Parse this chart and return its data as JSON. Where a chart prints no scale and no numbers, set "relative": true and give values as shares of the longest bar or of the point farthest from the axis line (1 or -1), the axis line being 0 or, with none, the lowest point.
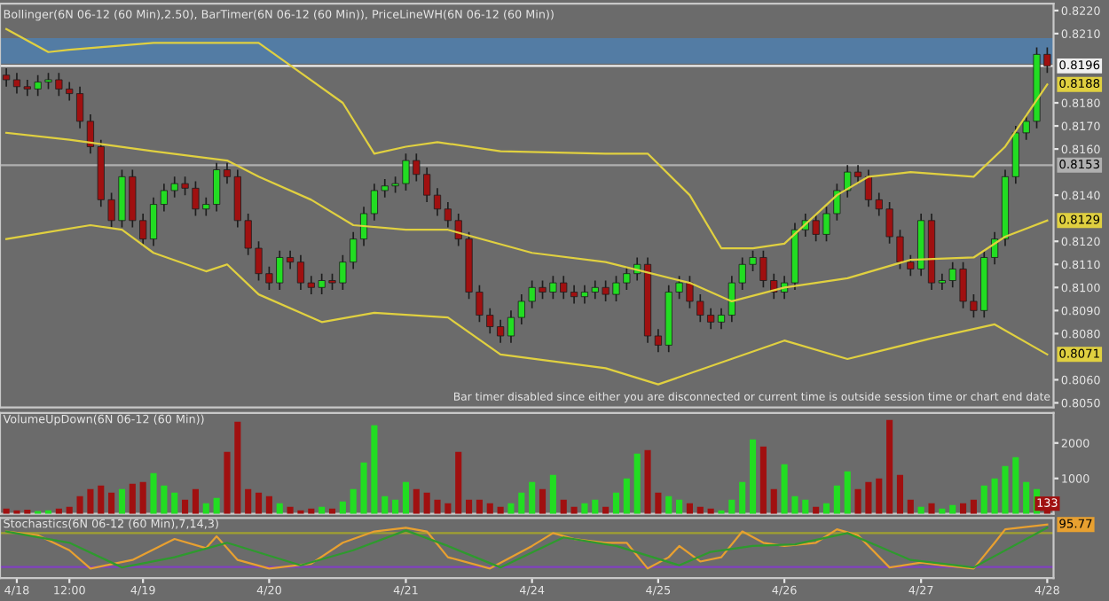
{
  "chart_data": [
    {
      "type": "candlestick",
      "title": "Bollinger(6N 06-12 (60 Min),2.50), BarTimer(6N 06-12 (60 Min)), PriceLineWH(6N 06-12 (60 Min))",
      "annotations": [
        "Bar timer disabled since either you are disconnected or current time is outside session time or chart end date"
      ],
      "tick_labels": "y",
      "categories": [
        null,
        null,
        null,
        null,
        null,
        null,
        null,
        null,
        null,
        null,
        null,
        null,
        null,
        null,
        null,
        null,
        null,
        null,
        null,
        null,
        null,
        null,
        null,
        null,
        null,
        null,
        null,
        null,
        null,
        null,
        null,
        null,
        null,
        null,
        null,
        null,
        null,
        null,
        null,
        null,
        null,
        null,
        null,
        null,
        null,
        null,
        null,
        null,
        null,
        null,
        null,
        null,
        null,
        null,
        null,
        null,
        null,
        null,
        null,
        null,
        null,
        null,
        null,
        null,
        null,
        null,
        null,
        null,
        null,
        null,
        null,
        null,
        null,
        null,
        null,
        null,
        null,
        null,
        null,
        null,
        null,
        null,
        null,
        null,
        null,
        null,
        null,
        null,
        null,
        null,
        null,
        null,
        null,
        null,
        null,
        null,
        null,
        null,
        null,
        null
      ],
      "ohlc": [
        [
          0.8192,
          0.8195,
          0.8187,
          0.819
        ],
        [
          0.819,
          0.8193,
          0.8184,
          0.8187
        ],
        [
          0.8187,
          0.819,
          0.8183,
          0.8186
        ],
        [
          0.8186,
          0.8192,
          0.8183,
          0.8189
        ],
        [
          0.8189,
          0.8193,
          0.8186,
          0.819
        ],
        [
          0.819,
          0.8193,
          0.8183,
          0.8186
        ],
        [
          0.8186,
          0.8189,
          0.8181,
          0.8184
        ],
        [
          0.8184,
          0.8187,
          0.8169,
          0.8172
        ],
        [
          0.8172,
          0.8175,
          0.8158,
          0.8161
        ],
        [
          0.8161,
          0.8164,
          0.8135,
          0.8138
        ],
        [
          0.8138,
          0.8141,
          0.8126,
          0.8129
        ],
        [
          0.8129,
          0.8151,
          0.8126,
          0.8148
        ],
        [
          0.8148,
          0.8151,
          0.8126,
          0.8129
        ],
        [
          0.8129,
          0.8132,
          0.8118,
          0.8121
        ],
        [
          0.8121,
          0.8139,
          0.8118,
          0.8136
        ],
        [
          0.8136,
          0.8145,
          0.8133,
          0.8142
        ],
        [
          0.8142,
          0.8148,
          0.8139,
          0.8145
        ],
        [
          0.8145,
          0.8148,
          0.814,
          0.8143
        ],
        [
          0.8143,
          0.8146,
          0.8131,
          0.8134
        ],
        [
          0.8134,
          0.8139,
          0.8131,
          0.8136
        ],
        [
          0.8136,
          0.8154,
          0.8133,
          0.8151
        ],
        [
          0.8151,
          0.8154,
          0.8145,
          0.8148
        ],
        [
          0.8148,
          0.8151,
          0.8126,
          0.8129
        ],
        [
          0.8129,
          0.8132,
          0.8114,
          0.8117
        ],
        [
          0.8117,
          0.812,
          0.8103,
          0.8106
        ],
        [
          0.8106,
          0.8109,
          0.8099,
          0.8102
        ],
        [
          0.8102,
          0.8116,
          0.8099,
          0.8113
        ],
        [
          0.8113,
          0.8116,
          0.8108,
          0.8111
        ],
        [
          0.8111,
          0.8114,
          0.8099,
          0.8102
        ],
        [
          0.8102,
          0.8105,
          0.8097,
          0.81
        ],
        [
          0.81,
          0.8106,
          0.8097,
          0.8103
        ],
        [
          0.8103,
          0.8106,
          0.8099,
          0.8102
        ],
        [
          0.8102,
          0.8114,
          0.8099,
          0.8111
        ],
        [
          0.8111,
          0.8124,
          0.8108,
          0.8121
        ],
        [
          0.8121,
          0.8135,
          0.8118,
          0.8132
        ],
        [
          0.8132,
          0.8145,
          0.8129,
          0.8142
        ],
        [
          0.8142,
          0.8147,
          0.8139,
          0.8144
        ],
        [
          0.8144,
          0.8148,
          0.8141,
          0.8145
        ],
        [
          0.8145,
          0.8158,
          0.8142,
          0.8155
        ],
        [
          0.8155,
          0.8158,
          0.8146,
          0.8149
        ],
        [
          0.8149,
          0.8152,
          0.8137,
          0.814
        ],
        [
          0.814,
          0.8143,
          0.8131,
          0.8134
        ],
        [
          0.8134,
          0.8137,
          0.8126,
          0.8129
        ],
        [
          0.8129,
          0.8132,
          0.8118,
          0.8121
        ],
        [
          0.8121,
          0.8124,
          0.8095,
          0.8098
        ],
        [
          0.8098,
          0.8101,
          0.8085,
          0.8088
        ],
        [
          0.8088,
          0.8091,
          0.808,
          0.8083
        ],
        [
          0.8083,
          0.8086,
          0.8076,
          0.8079
        ],
        [
          0.8079,
          0.809,
          0.8076,
          0.8087
        ],
        [
          0.8087,
          0.8097,
          0.8084,
          0.8094
        ],
        [
          0.8094,
          0.8103,
          0.8091,
          0.81
        ],
        [
          0.81,
          0.8103,
          0.8095,
          0.8098
        ],
        [
          0.8098,
          0.8105,
          0.8095,
          0.8102
        ],
        [
          0.8102,
          0.8105,
          0.8095,
          0.8098
        ],
        [
          0.8098,
          0.8101,
          0.8093,
          0.8096
        ],
        [
          0.8096,
          0.8101,
          0.8093,
          0.8098
        ],
        [
          0.8098,
          0.8103,
          0.8095,
          0.81
        ],
        [
          0.81,
          0.8103,
          0.8094,
          0.8097
        ],
        [
          0.8097,
          0.8105,
          0.8094,
          0.8102
        ],
        [
          0.8102,
          0.8109,
          0.8099,
          0.8106
        ],
        [
          0.8106,
          0.8113,
          0.8103,
          0.811
        ],
        [
          0.811,
          0.8113,
          0.8076,
          0.8079
        ],
        [
          0.8079,
          0.8082,
          0.8072,
          0.8075
        ],
        [
          0.8075,
          0.8101,
          0.8072,
          0.8098
        ],
        [
          0.8098,
          0.8105,
          0.8095,
          0.8102
        ],
        [
          0.8102,
          0.8105,
          0.8091,
          0.8094
        ],
        [
          0.8094,
          0.8097,
          0.8085,
          0.8088
        ],
        [
          0.8088,
          0.8091,
          0.8082,
          0.8085
        ],
        [
          0.8085,
          0.8091,
          0.8082,
          0.8088
        ],
        [
          0.8088,
          0.8105,
          0.8085,
          0.8102
        ],
        [
          0.8102,
          0.8113,
          0.8099,
          0.811
        ],
        [
          0.811,
          0.8116,
          0.8107,
          0.8113
        ],
        [
          0.8113,
          0.8116,
          0.81,
          0.8103
        ],
        [
          0.8103,
          0.8106,
          0.8095,
          0.8098
        ],
        [
          0.8098,
          0.8105,
          0.8095,
          0.8102
        ],
        [
          0.8102,
          0.8128,
          0.8099,
          0.8125
        ],
        [
          0.8125,
          0.8132,
          0.8122,
          0.8129
        ],
        [
          0.8129,
          0.8132,
          0.812,
          0.8123
        ],
        [
          0.8123,
          0.8135,
          0.812,
          0.8132
        ],
        [
          0.8132,
          0.8145,
          0.8129,
          0.8142
        ],
        [
          0.8142,
          0.8153,
          0.8139,
          0.815
        ],
        [
          0.815,
          0.8153,
          0.8145,
          0.8148
        ],
        [
          0.8148,
          0.8151,
          0.8135,
          0.8138
        ],
        [
          0.8138,
          0.8141,
          0.8131,
          0.8134
        ],
        [
          0.8134,
          0.8137,
          0.8119,
          0.8122
        ],
        [
          0.8122,
          0.8125,
          0.8108,
          0.8111
        ],
        [
          0.8111,
          0.8114,
          0.8105,
          0.8108
        ],
        [
          0.8108,
          0.8132,
          0.8105,
          0.8129
        ],
        [
          0.8129,
          0.8132,
          0.8099,
          0.8102
        ],
        [
          0.8102,
          0.8106,
          0.8099,
          0.8103
        ],
        [
          0.8103,
          0.8111,
          0.81,
          0.8108
        ],
        [
          0.8108,
          0.8111,
          0.8091,
          0.8094
        ],
        [
          0.8094,
          0.8097,
          0.8087,
          0.809
        ],
        [
          0.809,
          0.8116,
          0.8087,
          0.8113
        ],
        [
          0.8113,
          0.8124,
          0.811,
          0.8121
        ],
        [
          0.8121,
          0.8151,
          0.8118,
          0.8148
        ],
        [
          0.8148,
          0.817,
          0.8145,
          0.8167
        ],
        [
          0.8167,
          0.8175,
          0.8164,
          0.8172
        ],
        [
          0.8172,
          0.8204,
          0.8169,
          0.8201
        ],
        [
          0.8201,
          0.8204,
          0.8193,
          0.8196
        ]
      ],
      "colors": [
        "#a01010",
        "#a01010",
        "#a01010",
        "#22dd22",
        "#22dd22",
        "#a01010",
        "#a01010",
        "#a01010",
        "#a01010",
        "#a01010",
        "#a01010",
        "#22dd22",
        "#a01010",
        "#a01010",
        "#22dd22",
        "#22dd22",
        "#22dd22",
        "#a01010",
        "#a01010",
        "#22dd22",
        "#22dd22",
        "#a01010",
        "#a01010",
        "#a01010",
        "#a01010",
        "#a01010",
        "#22dd22",
        "#a01010",
        "#a01010",
        "#a01010",
        "#22dd22",
        "#a01010",
        "#22dd22",
        "#22dd22",
        "#22dd22",
        "#22dd22",
        "#22dd22",
        "#22dd22",
        "#22dd22",
        "#a01010",
        "#a01010",
        "#a01010",
        "#a01010",
        "#a01010",
        "#a01010",
        "#a01010",
        "#a01010",
        "#a01010",
        "#22dd22",
        "#22dd22",
        "#22dd22",
        "#a01010",
        "#22dd22",
        "#a01010",
        "#a01010",
        "#22dd22",
        "#22dd22",
        "#a01010",
        "#22dd22",
        "#22dd22",
        "#22dd22",
        "#a01010",
        "#a01010",
        "#22dd22",
        "#22dd22",
        "#a01010",
        "#a01010",
        "#a01010",
        "#22dd22",
        "#22dd22",
        "#22dd22",
        "#22dd22",
        "#a01010",
        "#a01010",
        "#22dd22",
        "#22dd22",
        "#22dd22",
        "#a01010",
        "#22dd22",
        "#22dd22",
        "#22dd22",
        "#a01010",
        "#a01010",
        "#a01010",
        "#a01010",
        "#a01010",
        "#a01010",
        "#22dd22",
        "#a01010",
        "#22dd22",
        "#22dd22",
        "#a01010",
        "#a01010",
        "#22dd22",
        "#22dd22",
        "#22dd22",
        "#22dd22",
        "#22dd22",
        "#22dd22",
        "#a01010"
      ],
      "series": [
        {
          "type": "line",
          "color": "#e0d040",
          "values": [
            0.8212,
            null,
            null,
            null,
            0.8202,
            null,
            0.8203,
            null,
            null,
            null,
            null,
            null,
            null,
            null,
            0.8206,
            null,
            null,
            null,
            null,
            null,
            null,
            null,
            null,
            null,
            0.8206,
            null,
            null,
            null,
            0.8193,
            null,
            null,
            null,
            0.818,
            null,
            null,
            0.8158,
            null,
            null,
            0.8161,
            null,
            null,
            0.8163,
            null,
            null,
            null,
            null,
            null,
            0.8159,
            null,
            null,
            null,
            null,
            null,
            null,
            null,
            null,
            null,
            0.8158,
            null,
            null,
            null,
            0.8158,
            null,
            null,
            null,
            0.814,
            null,
            null,
            0.8117,
            null,
            null,
            0.8117,
            null,
            null,
            0.8119,
            null,
            null,
            null,
            null,
            0.814,
            null,
            null,
            0.8148,
            null,
            null,
            null,
            0.815,
            null,
            null,
            null,
            null,
            null,
            0.8148,
            null,
            null,
            0.8161,
            null,
            null,
            null,
            0.8188
          ],
          "value_labels": [
            null,
            null,
            null,
            null,
            null,
            null,
            null,
            null,
            null,
            null,
            null,
            null,
            null,
            null,
            null,
            null,
            null,
            null,
            null,
            null,
            null,
            null,
            null,
            null,
            null,
            null,
            null,
            null,
            null,
            null,
            null,
            null,
            null,
            null,
            null,
            null,
            null,
            null,
            null,
            null,
            null,
            null,
            null,
            null,
            null,
            null,
            null,
            null,
            null,
            null,
            null,
            null,
            null,
            null,
            null,
            null,
            null,
            null,
            null,
            null,
            null,
            null,
            null,
            null,
            null,
            null,
            null,
            null,
            null,
            null,
            null,
            null,
            null,
            null,
            null,
            null,
            null,
            null,
            null,
            null,
            null,
            null,
            null,
            null,
            null,
            null,
            null,
            null,
            null,
            null,
            null,
            null,
            null,
            null,
            null,
            null,
            null,
            null,
            null,
            "0.8188"
          ]
        },
        {
          "type": "line",
          "color": "#e0d040",
          "values": [
            0.8167,
            null,
            null,
            null,
            null,
            null,
            0.8164,
            null,
            null,
            null,
            null,
            null,
            null,
            null,
            0.8159,
            null,
            null,
            null,
            null,
            null,
            null,
            0.8155,
            null,
            null,
            0.8148,
            null,
            null,
            null,
            null,
            0.8138,
            null,
            null,
            null,
            0.8127,
            null,
            null,
            null,
            null,
            0.8125,
            null,
            null,
            null,
            0.8125,
            null,
            null,
            null,
            null,
            null,
            null,
            null,
            0.8115,
            null,
            null,
            null,
            null,
            null,
            null,
            0.8111,
            null,
            null,
            null,
            null,
            null,
            null,
            null,
            0.8102,
            null,
            null,
            null,
            0.8094,
            null,
            null,
            null,
            null,
            0.81,
            null,
            null,
            null,
            null,
            null,
            0.8104,
            null,
            null,
            null,
            null,
            null,
            0.8112,
            null,
            null,
            null,
            null,
            null,
            0.8113,
            null,
            null,
            0.8122,
            null,
            null,
            null,
            0.8129
          ],
          "value_labels": [
            null,
            null,
            null,
            null,
            null,
            null,
            null,
            null,
            null,
            null,
            null,
            null,
            null,
            null,
            null,
            null,
            null,
            null,
            null,
            null,
            null,
            null,
            null,
            null,
            null,
            null,
            null,
            null,
            null,
            null,
            null,
            null,
            null,
            null,
            null,
            null,
            null,
            null,
            null,
            null,
            null,
            null,
            null,
            null,
            null,
            null,
            null,
            null,
            null,
            null,
            null,
            null,
            null,
            null,
            null,
            null,
            null,
            null,
            null,
            null,
            null,
            null,
            null,
            null,
            null,
            null,
            null,
            null,
            null,
            null,
            null,
            null,
            null,
            null,
            null,
            null,
            null,
            null,
            null,
            null,
            null,
            null,
            null,
            null,
            null,
            null,
            null,
            null,
            null,
            null,
            null,
            null,
            null,
            null,
            null,
            null,
            null,
            null,
            null,
            "0.8129"
          ]
        },
        {
          "type": "line",
          "color": "#e0d040",
          "values": [
            0.8121,
            null,
            null,
            null,
            null,
            null,
            null,
            null,
            0.8127,
            null,
            null,
            0.8125,
            null,
            null,
            0.8115,
            null,
            null,
            null,
            null,
            0.8107,
            null,
            0.811,
            null,
            null,
            0.8097,
            null,
            null,
            null,
            null,
            null,
            0.8085,
            null,
            null,
            null,
            null,
            0.8089,
            null,
            null,
            null,
            null,
            null,
            null,
            0.8087,
            null,
            null,
            null,
            null,
            0.8071,
            null,
            null,
            null,
            null,
            null,
            null,
            null,
            null,
            null,
            0.8065,
            null,
            null,
            null,
            null,
            0.8058,
            null,
            null,
            null,
            null,
            null,
            null,
            null,
            null,
            null,
            null,
            null,
            0.8077,
            null,
            null,
            null,
            null,
            null,
            0.8069,
            null,
            null,
            null,
            null,
            null,
            null,
            null,
            0.8078,
            null,
            null,
            null,
            null,
            null,
            0.8084,
            null,
            null,
            null,
            null,
            0.8071
          ],
          "value_labels": [
            null,
            null,
            null,
            null,
            null,
            null,
            null,
            null,
            null,
            null,
            null,
            null,
            null,
            null,
            null,
            null,
            null,
            null,
            null,
            null,
            null,
            null,
            null,
            null,
            null,
            null,
            null,
            null,
            null,
            null,
            null,
            null,
            null,
            null,
            null,
            null,
            null,
            null,
            null,
            null,
            null,
            null,
            null,
            null,
            null,
            null,
            null,
            null,
            null,
            null,
            null,
            null,
            null,
            null,
            null,
            null,
            null,
            null,
            null,
            null,
            null,
            null,
            null,
            null,
            null,
            null,
            null,
            null,
            null,
            null,
            null,
            null,
            null,
            null,
            null,
            null,
            null,
            null,
            null,
            null,
            null,
            null,
            null,
            null,
            null,
            null,
            null,
            null,
            null,
            null,
            null,
            null,
            null,
            null,
            null,
            null,
            null,
            null,
            null,
            "0.8071"
          ]
        }
      ],
      "bands": [
        {
          "axis": "y",
          "from": 0.8197,
          "to": 0.8208,
          "color": "#4f7fae"
        }
      ],
      "ref_lines": [
        {
          "axis": "y",
          "value": 0.8196,
          "label": "0.8196",
          "color": "#f0f0f0"
        },
        {
          "axis": "y",
          "value": 0.8153,
          "label": "0.8153",
          "color": "#b0b0b0"
        }
      ],
      "ylim": [
        0.8048,
        0.8223
      ],
      "yticks": [
        {
          "value": 0.822,
          "label": "0.8220"
        },
        {
          "value": 0.821,
          "label": "0.8210"
        },
        {
          "value": 0.818,
          "label": "0.8180"
        },
        {
          "value": 0.817,
          "label": "0.8170"
        },
        {
          "value": 0.816,
          "label": "0.8160"
        },
        {
          "value": 0.814,
          "label": "0.8140"
        },
        {
          "value": 0.812,
          "label": "0.8120"
        },
        {
          "value": 0.811,
          "label": "0.8110"
        },
        {
          "value": 0.81,
          "label": "0.8100"
        },
        {
          "value": 0.809,
          "label": "0.8090"
        },
        {
          "value": 0.808,
          "label": "0.8080"
        },
        {
          "value": 0.806,
          "label": "0.8060"
        },
        {
          "value": 0.805,
          "label": "0.8050"
        }
      ]
    },
    {
      "type": "bar",
      "title": "VolumeUpDown(6N 06-12 (60 Min))",
      "tick_labels": "y",
      "categories": [
        null,
        null,
        null,
        null,
        null,
        null,
        null,
        null,
        null,
        null,
        null,
        null,
        null,
        null,
        null,
        null,
        null,
        null,
        null,
        null,
        null,
        null,
        null,
        null,
        null,
        null,
        null,
        null,
        null,
        null,
        null,
        null,
        null,
        null,
        null,
        null,
        null,
        null,
        null,
        null,
        null,
        null,
        null,
        null,
        null,
        null,
        null,
        null,
        null,
        null,
        null,
        null,
        null,
        null,
        null,
        null,
        null,
        null,
        null,
        null,
        null,
        null,
        null,
        null,
        null,
        null,
        null,
        null,
        null,
        null,
        null,
        null,
        null,
        null,
        null,
        null,
        null,
        null,
        null,
        null,
        null,
        null,
        null,
        null,
        null,
        null,
        null,
        null,
        null,
        null,
        null,
        null,
        null,
        null,
        null,
        null,
        null,
        null,
        null,
        null
      ],
      "values": [
        150,
        100,
        120,
        80,
        100,
        150,
        200,
        500,
        700,
        800,
        600,
        700,
        850,
        900,
        1150,
        800,
        600,
        400,
        700,
        300,
        450,
        1750,
        2600,
        700,
        600,
        500,
        300,
        200,
        100,
        150,
        200,
        150,
        350,
        700,
        1450,
        2500,
        500,
        400,
        900,
        700,
        600,
        400,
        300,
        1750,
        400,
        400,
        300,
        200,
        300,
        600,
        900,
        700,
        1100,
        400,
        200,
        300,
        400,
        200,
        600,
        1000,
        1700,
        1800,
        600,
        500,
        400,
        300,
        200,
        150,
        100,
        400,
        900,
        2100,
        1900,
        700,
        1400,
        500,
        400,
        200,
        300,
        800,
        1200,
        700,
        900,
        1000,
        2650,
        1100,
        400,
        200,
        300,
        150,
        250,
        300,
        400,
        800,
        1000,
        1350,
        1600,
        900,
        700,
        133
      ],
      "value_labels": [
        null,
        null,
        null,
        null,
        null,
        null,
        null,
        null,
        null,
        null,
        null,
        null,
        null,
        null,
        null,
        null,
        null,
        null,
        null,
        null,
        null,
        null,
        null,
        null,
        null,
        null,
        null,
        null,
        null,
        null,
        null,
        null,
        null,
        null,
        null,
        null,
        null,
        null,
        null,
        null,
        null,
        null,
        null,
        null,
        null,
        null,
        null,
        null,
        null,
        null,
        null,
        null,
        null,
        null,
        null,
        null,
        null,
        null,
        null,
        null,
        null,
        null,
        null,
        null,
        null,
        null,
        null,
        null,
        null,
        null,
        null,
        null,
        null,
        null,
        null,
        null,
        null,
        null,
        null,
        null,
        null,
        null,
        null,
        null,
        null,
        null,
        null,
        null,
        null,
        null,
        null,
        null,
        null,
        null,
        null,
        null,
        null,
        null,
        null,
        "133"
      ],
      "colors": [
        "#a01010",
        "#a01010",
        "#a01010",
        "#22dd22",
        "#22dd22",
        "#a01010",
        "#a01010",
        "#a01010",
        "#a01010",
        "#a01010",
        "#a01010",
        "#22dd22",
        "#a01010",
        "#a01010",
        "#22dd22",
        "#22dd22",
        "#22dd22",
        "#a01010",
        "#a01010",
        "#22dd22",
        "#22dd22",
        "#a01010",
        "#a01010",
        "#a01010",
        "#a01010",
        "#a01010",
        "#22dd22",
        "#a01010",
        "#a01010",
        "#a01010",
        "#22dd22",
        "#a01010",
        "#22dd22",
        "#22dd22",
        "#22dd22",
        "#22dd22",
        "#22dd22",
        "#22dd22",
        "#22dd22",
        "#a01010",
        "#a01010",
        "#a01010",
        "#a01010",
        "#a01010",
        "#a01010",
        "#a01010",
        "#a01010",
        "#a01010",
        "#22dd22",
        "#22dd22",
        "#22dd22",
        "#a01010",
        "#22dd22",
        "#a01010",
        "#a01010",
        "#22dd22",
        "#22dd22",
        "#a01010",
        "#22dd22",
        "#22dd22",
        "#22dd22",
        "#a01010",
        "#a01010",
        "#22dd22",
        "#22dd22",
        "#a01010",
        "#a01010",
        "#a01010",
        "#22dd22",
        "#22dd22",
        "#22dd22",
        "#22dd22",
        "#a01010",
        "#a01010",
        "#22dd22",
        "#22dd22",
        "#22dd22",
        "#a01010",
        "#22dd22",
        "#22dd22",
        "#22dd22",
        "#a01010",
        "#a01010",
        "#a01010",
        "#a01010",
        "#a01010",
        "#a01010",
        "#22dd22",
        "#a01010",
        "#22dd22",
        "#22dd22",
        "#a01010",
        "#a01010",
        "#22dd22",
        "#22dd22",
        "#22dd22",
        "#22dd22",
        "#22dd22",
        "#22dd22",
        "#a01010"
      ],
      "ylim": [
        0,
        2850
      ],
      "yticks": [
        1000,
        2000
      ]
    },
    {
      "type": "line",
      "title": "Stochastics(6N 06-12 (60 Min),7,14,3)",
      "tick_labels": "x",
      "categories": [
        null,
        "4/18",
        null,
        null,
        null,
        null,
        "12:00",
        null,
        null,
        null,
        null,
        null,
        null,
        "4/19",
        null,
        null,
        null,
        null,
        null,
        null,
        null,
        null,
        null,
        null,
        null,
        "4/20",
        null,
        null,
        null,
        null,
        null,
        null,
        null,
        null,
        null,
        null,
        null,
        null,
        "4/21",
        null,
        null,
        null,
        null,
        null,
        null,
        null,
        null,
        null,
        null,
        null,
        "4/24",
        null,
        null,
        null,
        null,
        null,
        null,
        null,
        null,
        null,
        null,
        null,
        "4/25",
        null,
        null,
        null,
        null,
        null,
        null,
        null,
        null,
        null,
        null,
        null,
        "4/26",
        null,
        null,
        null,
        null,
        null,
        null,
        null,
        null,
        null,
        null,
        null,
        null,
        "4/27",
        null,
        null,
        null,
        null,
        null,
        null,
        null,
        null,
        null,
        null,
        null,
        "4/28"
      ],
      "series": [
        {
          "color": "#e8a030",
          "values": [
            0.87,
            null,
            null,
            0.8,
            null,
            null,
            0.52,
            null,
            0.18,
            null,
            null,
            null,
            0.34,
            null,
            null,
            null,
            0.73,
            null,
            null,
            0.56,
            0.78,
            null,
            0.34,
            null,
            null,
            0.18,
            null,
            null,
            null,
            0.27,
            null,
            null,
            0.66,
            null,
            null,
            0.87,
            null,
            null,
            0.94,
            null,
            0.87,
            null,
            0.39,
            null,
            null,
            null,
            0.18,
            null,
            null,
            null,
            0.6,
            null,
            0.84,
            null,
            0.73,
            null,
            null,
            0.66,
            null,
            0.66,
            null,
            0.18,
            null,
            0.39,
            0.6,
            null,
            0.31,
            null,
            0.39,
            null,
            0.87,
            null,
            0.66,
            null,
            0.6,
            null,
            null,
            0.66,
            null,
            0.91,
            null,
            0.8,
            null,
            null,
            0.2,
            null,
            null,
            0.29,
            null,
            0.24,
            null,
            null,
            0.18,
            null,
            0.66,
            0.91,
            null,
            null,
            null,
            1
          ]
        },
        {
          "color": "#2e9a2e",
          "values": [
            0.87,
            null,
            null,
            null,
            null,
            null,
            0.66,
            null,
            null,
            null,
            null,
            0.2,
            null,
            null,
            null,
            null,
            0.39,
            null,
            null,
            null,
            null,
            0.66,
            null,
            null,
            null,
            null,
            null,
            null,
            0.24,
            null,
            null,
            null,
            null,
            0.52,
            null,
            null,
            null,
            null,
            0.89,
            null,
            null,
            null,
            0.6,
            null,
            null,
            null,
            null,
            0.2,
            null,
            null,
            null,
            null,
            null,
            0.76,
            null,
            null,
            null,
            null,
            0.6,
            null,
            null,
            null,
            null,
            null,
            0.24,
            null,
            null,
            0.49,
            null,
            null,
            null,
            0.6,
            null,
            null,
            null,
            0.63,
            null,
            null,
            null,
            null,
            0.84,
            null,
            null,
            null,
            null,
            null,
            0.34,
            null,
            null,
            null,
            null,
            null,
            0.2,
            null,
            null,
            null,
            null,
            null,
            null,
            0.94
          ]
        }
      ],
      "annotations": [
        {
          "text": "95.77",
          "y": 1
        }
      ],
      "relative": true,
      "ref_lines": [
        {
          "axis": "y",
          "value": 0.84,
          "color": "#a0a030"
        },
        {
          "axis": "y",
          "value": 0.21,
          "color": "#8040c0"
        }
      ]
    }
  ]
}
